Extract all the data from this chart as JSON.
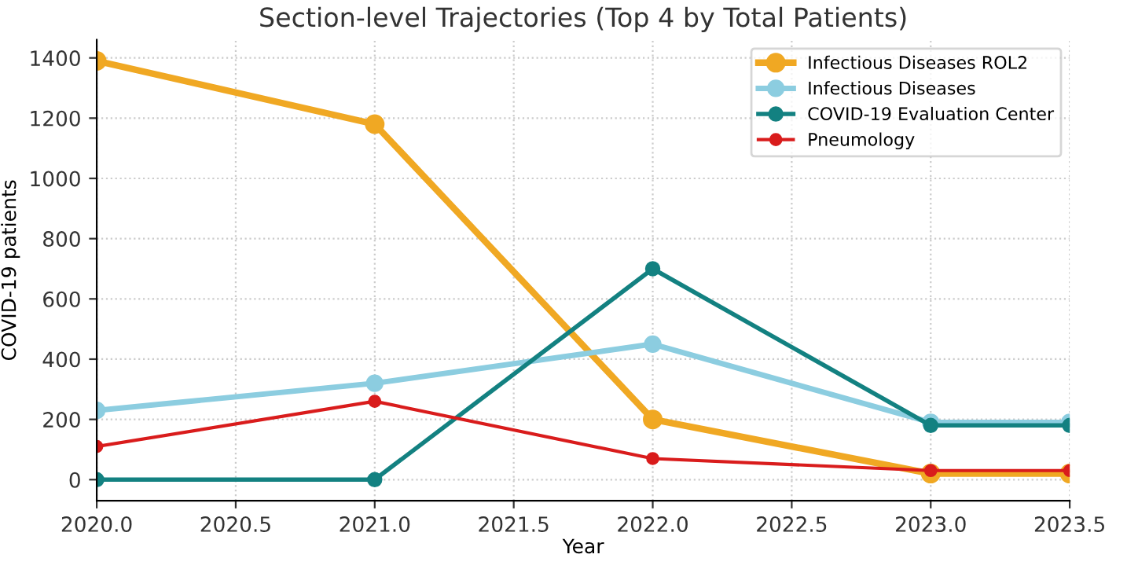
{
  "chart_data": {
    "type": "line",
    "title": "Section-level Trajectories (Top 4 by Total Patients)",
    "xlabel": "Year",
    "ylabel": "COVID-19 patients",
    "x": [
      2020,
      2021,
      2022,
      2023,
      2023.5
    ],
    "series": [
      {
        "name": "Infectious Diseases ROL2",
        "color": "#f0a823",
        "values": [
          1390,
          1180,
          200,
          20,
          20
        ]
      },
      {
        "name": "Infectious Diseases",
        "color": "#8ccde0",
        "values": [
          230,
          320,
          450,
          190,
          190
        ]
      },
      {
        "name": "COVID-19 Evaluation Center",
        "color": "#138181",
        "values": [
          0,
          0,
          700,
          180,
          180
        ]
      },
      {
        "name": "Pneumology",
        "color": "#d91c1c",
        "values": [
          110,
          260,
          70,
          30,
          30
        ]
      }
    ],
    "xlim": [
      2020,
      2023.5
    ],
    "xticks": [
      {
        "value": 2020,
        "label": "2020.0"
      },
      {
        "value": 2020.5,
        "label": "2020.5"
      },
      {
        "value": 2021,
        "label": "2021.0"
      },
      {
        "value": 2021.5,
        "label": "2021.5"
      },
      {
        "value": 2022,
        "label": "2022.0"
      },
      {
        "value": 2022.5,
        "label": "2022.5"
      },
      {
        "value": 2023,
        "label": "2023.0"
      },
      {
        "value": 2023.5,
        "label": "2023.5"
      }
    ],
    "ylim": [
      -70,
      1460
    ],
    "yticks": [
      0,
      200,
      400,
      600,
      800,
      1000,
      1200,
      1400
    ],
    "grid": true,
    "legend": "top right",
    "marker": "circle",
    "line_style": "solid"
  }
}
